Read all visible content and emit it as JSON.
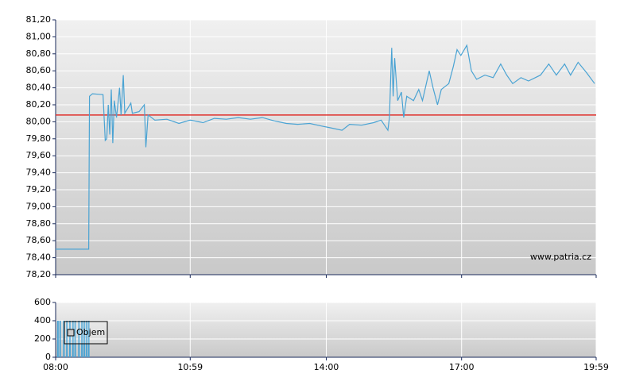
{
  "chart_data": [
    {
      "type": "line",
      "xlim": [
        "08:00",
        "19:59"
      ],
      "xticks": [
        "08:00",
        "10:59",
        "14:00",
        "17:00",
        "19:59"
      ],
      "ylim": [
        78.2,
        81.2
      ],
      "yticks": [
        {
          "value": 78.2,
          "label": "78,20"
        },
        {
          "value": 78.4,
          "label": "78,40"
        },
        {
          "value": 78.6,
          "label": "78,60"
        },
        {
          "value": 78.8,
          "label": "78,80"
        },
        {
          "value": 79.0,
          "label": "79,00"
        },
        {
          "value": 79.2,
          "label": "79,20"
        },
        {
          "value": 79.4,
          "label": "79,40"
        },
        {
          "value": 79.6,
          "label": "79,60"
        },
        {
          "value": 79.8,
          "label": "79,80"
        },
        {
          "value": 80.0,
          "label": "80,00"
        },
        {
          "value": 80.2,
          "label": "80,20"
        },
        {
          "value": 80.4,
          "label": "80,40"
        },
        {
          "value": 80.6,
          "label": "80,60"
        },
        {
          "value": 80.8,
          "label": "80,80"
        },
        {
          "value": 81.0,
          "label": "81,00"
        },
        {
          "value": 81.2,
          "label": "81,20"
        }
      ],
      "grid": true,
      "x": [
        "08:00",
        "08:44",
        "08:45",
        "08:49",
        "09:03",
        "09:06",
        "09:08",
        "09:10",
        "09:12",
        "09:14",
        "09:16",
        "09:18",
        "09:21",
        "09:25",
        "09:27",
        "09:30",
        "09:32",
        "09:40",
        "09:42",
        "09:51",
        "09:58",
        "10:00",
        "10:03",
        "10:12",
        "10:28",
        "10:44",
        "10:59",
        "11:16",
        "11:31",
        "11:47",
        "12:03",
        "12:19",
        "12:35",
        "12:51",
        "13:07",
        "13:22",
        "13:38",
        "13:54",
        "14:05",
        "14:21",
        "14:31",
        "14:47",
        "15:03",
        "15:13",
        "15:22",
        "15:24",
        "15:27",
        "15:29",
        "15:31",
        "15:35",
        "15:40",
        "15:43",
        "15:47",
        "15:56",
        "16:03",
        "16:08",
        "16:17",
        "16:22",
        "16:28",
        "16:33",
        "16:43",
        "16:49",
        "16:54",
        "16:59",
        "17:07",
        "17:13",
        "17:20",
        "17:31",
        "17:42",
        "17:52",
        "18:00",
        "18:08",
        "18:19",
        "18:29",
        "18:45",
        "18:56",
        "19:06",
        "19:17",
        "19:25",
        "19:35",
        "19:46",
        "19:57"
      ],
      "series": [
        {
          "color": "#4aa3d3",
          "values": [
            78.5,
            78.5,
            80.3,
            80.33,
            80.32,
            79.78,
            79.8,
            80.2,
            79.85,
            80.38,
            79.75,
            80.25,
            80.05,
            80.4,
            80.08,
            80.55,
            80.1,
            80.22,
            80.1,
            80.12,
            80.2,
            79.7,
            80.08,
            80.02,
            80.03,
            79.98,
            80.02,
            79.99,
            80.04,
            80.03,
            80.05,
            80.03,
            80.05,
            80.01,
            79.98,
            79.97,
            79.98,
            79.95,
            79.93,
            79.9,
            79.97,
            79.96,
            79.99,
            80.02,
            79.9,
            80.05,
            80.87,
            80.3,
            80.75,
            80.25,
            80.35,
            80.05,
            80.3,
            80.25,
            80.38,
            80.25,
            80.6,
            80.4,
            80.2,
            80.38,
            80.45,
            80.65,
            80.85,
            80.78,
            80.9,
            80.6,
            80.5,
            80.55,
            80.52,
            80.68,
            80.55,
            80.45,
            80.52,
            80.48,
            80.55,
            80.68,
            80.55,
            80.68,
            80.55,
            80.7,
            80.58,
            80.45
          ]
        }
      ],
      "reference_line": {
        "value": 80.08,
        "color": "#e0302b"
      },
      "watermark": "www.patria.cz"
    },
    {
      "type": "bar",
      "xlim": [
        "08:00",
        "19:59"
      ],
      "xticks": [
        "08:00",
        "10:59",
        "14:00",
        "17:00",
        "19:59"
      ],
      "ylim": [
        0,
        600
      ],
      "yticks": [
        0,
        200,
        400,
        600
      ],
      "grid": true,
      "legend": "upper left",
      "x": [
        "08:03",
        "08:06",
        "08:11",
        "08:15",
        "08:19",
        "08:23",
        "08:26",
        "08:31",
        "08:35",
        "08:38",
        "08:41",
        "08:44"
      ],
      "series": [
        {
          "name": "Objem",
          "color": "#4aa3d3",
          "values": [
            400,
            400,
            400,
            400,
            400,
            400,
            400,
            400,
            400,
            400,
            400,
            400
          ]
        }
      ]
    }
  ]
}
